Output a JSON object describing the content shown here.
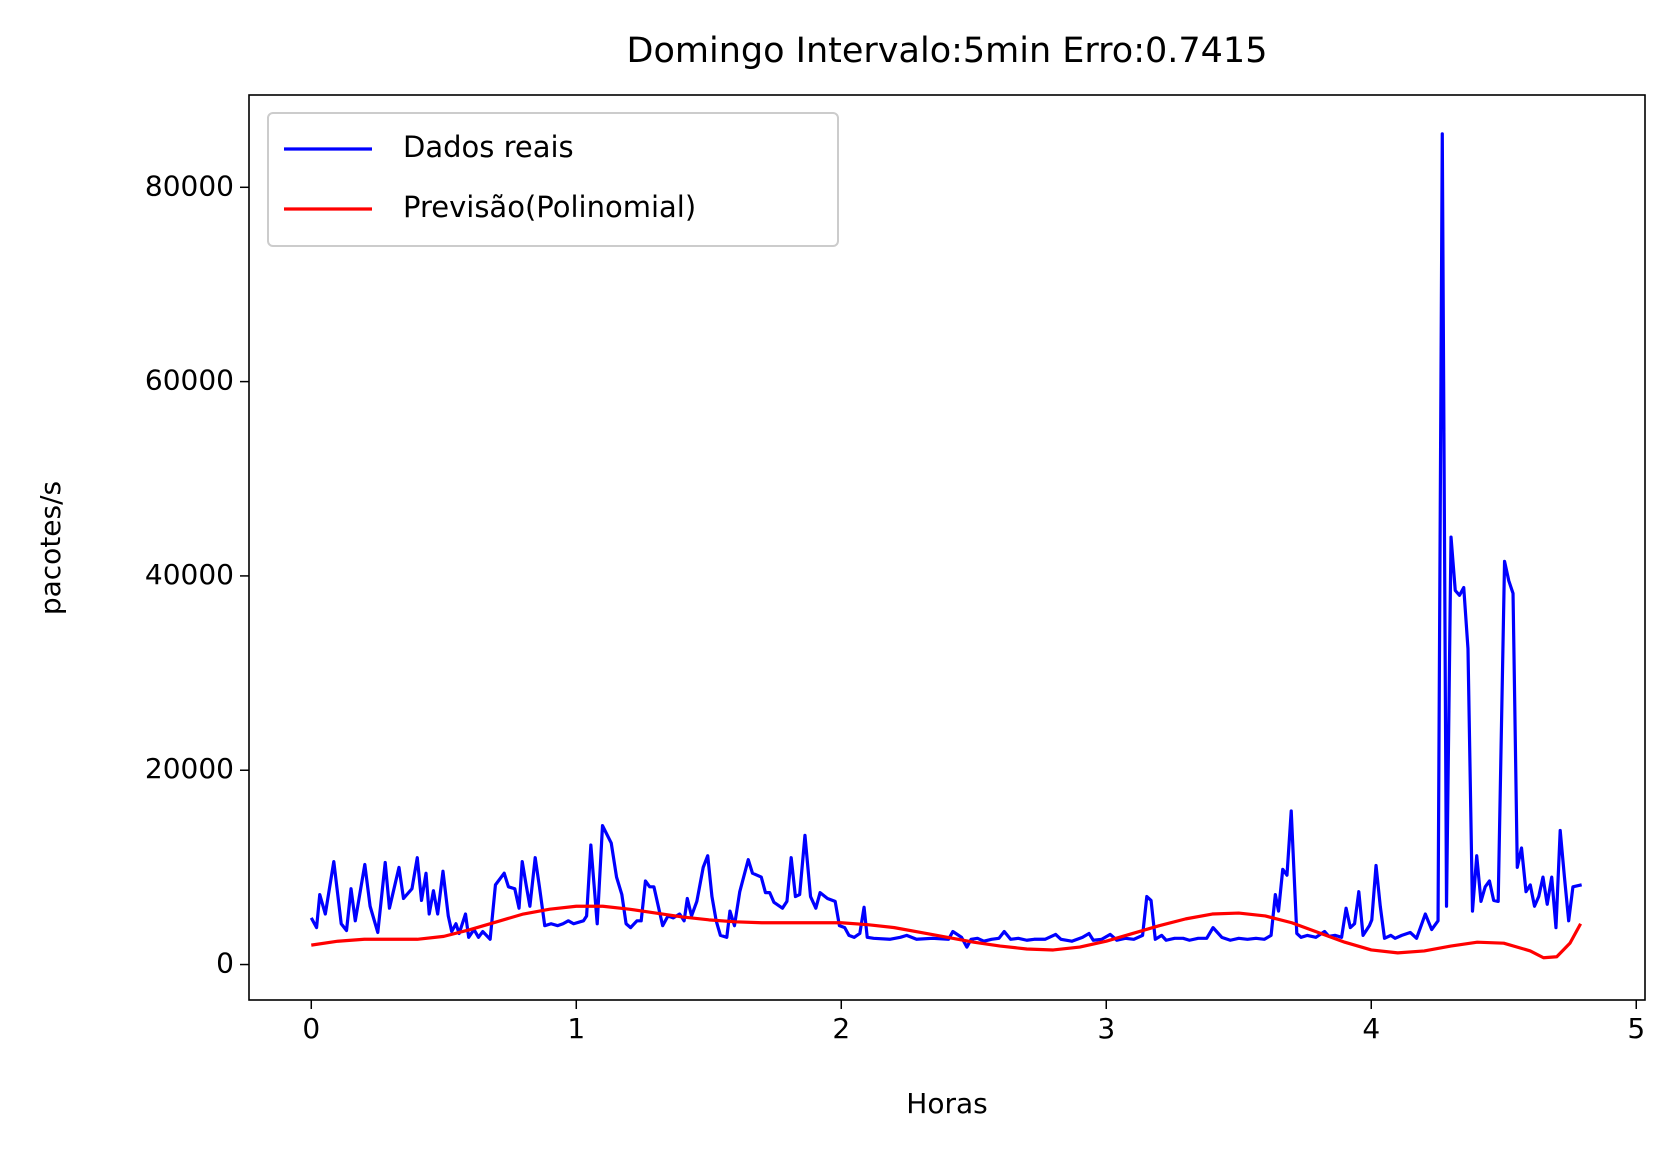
{
  "chart_data": {
    "type": "line",
    "title": "Domingo Intervalo:5min Erro:0.7415",
    "x_label": "Horas",
    "y_label": "pacotes/s",
    "xlim": [
      -0.235,
      5.033
    ],
    "ylim": [
      -3650,
      89500
    ],
    "xticks": [
      0,
      1,
      2,
      3,
      4,
      5
    ],
    "yticks": [
      0,
      20000,
      40000,
      60000,
      80000
    ],
    "legend": "upper left",
    "series": [
      {
        "name": "Dados reais",
        "color": "#0000ff",
        "x": [
          0,
          0.02,
          0.032,
          0.053,
          0.085,
          0.113,
          0.133,
          0.15,
          0.166,
          0.202,
          0.222,
          0.251,
          0.279,
          0.295,
          0.331,
          0.348,
          0.38,
          0.4,
          0.416,
          0.433,
          0.445,
          0.461,
          0.477,
          0.497,
          0.517,
          0.53,
          0.546,
          0.558,
          0.582,
          0.594,
          0.614,
          0.631,
          0.647,
          0.675,
          0.695,
          0.728,
          0.744,
          0.768,
          0.784,
          0.796,
          0.812,
          0.825,
          0.845,
          0.861,
          0.881,
          0.905,
          0.93,
          0.95,
          0.97,
          0.99,
          1.027,
          1.039,
          1.055,
          1.079,
          1.099,
          1.132,
          1.152,
          1.172,
          1.188,
          1.205,
          1.229,
          1.245,
          1.261,
          1.277,
          1.293,
          1.326,
          1.346,
          1.366,
          1.39,
          1.407,
          1.419,
          1.435,
          1.455,
          1.479,
          1.496,
          1.512,
          1.528,
          1.544,
          1.568,
          1.58,
          1.597,
          1.617,
          1.649,
          1.665,
          1.698,
          1.714,
          1.73,
          1.746,
          1.778,
          1.795,
          1.811,
          1.827,
          1.843,
          1.863,
          1.884,
          1.904,
          1.92,
          1.948,
          1.977,
          1.993,
          2.013,
          2.029,
          2.049,
          2.07,
          2.086,
          2.098,
          2.122,
          2.183,
          2.223,
          2.247,
          2.284,
          2.344,
          2.405,
          2.421,
          2.454,
          2.474,
          2.49,
          2.514,
          2.538,
          2.567,
          2.595,
          2.615,
          2.639,
          2.668,
          2.7,
          2.728,
          2.769,
          2.809,
          2.829,
          2.87,
          2.91,
          2.935,
          2.951,
          2.983,
          3.015,
          3.04,
          3.072,
          3.104,
          3.137,
          3.153,
          3.169,
          3.185,
          3.209,
          3.226,
          3.258,
          3.29,
          3.314,
          3.347,
          3.379,
          3.403,
          3.436,
          3.468,
          3.5,
          3.533,
          3.565,
          3.597,
          3.622,
          3.638,
          3.65,
          3.666,
          3.682,
          3.698,
          3.719,
          3.735,
          3.759,
          3.791,
          3.824,
          3.84,
          3.864,
          3.888,
          3.905,
          3.921,
          3.937,
          3.953,
          3.969,
          3.993,
          4.002,
          4.018,
          4.034,
          4.05,
          4.074,
          4.09,
          4.115,
          4.147,
          4.171,
          4.204,
          4.228,
          4.252,
          4.268,
          4.284,
          4.301,
          4.317,
          4.333,
          4.349,
          4.365,
          4.382,
          4.398,
          4.414,
          4.43,
          4.446,
          4.462,
          4.479,
          4.503,
          4.519,
          4.535,
          4.551,
          4.567,
          4.584,
          4.6,
          4.616,
          4.632,
          4.648,
          4.664,
          4.681,
          4.697,
          4.713,
          4.729,
          4.745,
          4.761,
          4.794
        ],
        "values": [
          4800,
          3800,
          7200,
          5200,
          10600,
          4200,
          3500,
          7800,
          4500,
          10300,
          6000,
          3300,
          10500,
          5800,
          10000,
          6800,
          7800,
          11000,
          6600,
          9400,
          5200,
          7600,
          5200,
          9600,
          5000,
          3400,
          4200,
          3200,
          5200,
          2800,
          3600,
          2800,
          3400,
          2600,
          8200,
          9400,
          8000,
          7800,
          5800,
          10600,
          8000,
          6000,
          11000,
          8000,
          4000,
          4200,
          4000,
          4200,
          4500,
          4200,
          4500,
          5000,
          12300,
          4200,
          14300,
          12500,
          9000,
          7200,
          4200,
          3800,
          4500,
          4500,
          8600,
          8000,
          8000,
          4000,
          5000,
          4800,
          5200,
          4500,
          6800,
          5000,
          6500,
          10000,
          11200,
          7000,
          4500,
          3000,
          2800,
          5500,
          4000,
          7500,
          10800,
          9400,
          9000,
          7400,
          7400,
          6400,
          5800,
          6500,
          11000,
          7000,
          7200,
          13300,
          7000,
          5800,
          7400,
          6800,
          6500,
          4000,
          3800,
          3000,
          2800,
          3200,
          5900,
          2800,
          2700,
          2600,
          2800,
          3000,
          2600,
          2700,
          2600,
          3400,
          2800,
          1800,
          2600,
          2700,
          2400,
          2600,
          2700,
          3400,
          2600,
          2700,
          2500,
          2600,
          2600,
          3100,
          2600,
          2400,
          2800,
          3200,
          2500,
          2600,
          3100,
          2500,
          2700,
          2600,
          3000,
          7000,
          6600,
          2600,
          3000,
          2500,
          2700,
          2700,
          2500,
          2700,
          2700,
          3800,
          2800,
          2500,
          2700,
          2600,
          2700,
          2600,
          3000,
          7200,
          5500,
          9800,
          9200,
          15800,
          3200,
          2800,
          3000,
          2800,
          3400,
          2900,
          3000,
          2800,
          5800,
          3800,
          4200,
          7500,
          3000,
          4000,
          4600,
          10200,
          6000,
          2700,
          3000,
          2700,
          3000,
          3300,
          2700,
          5200,
          3600,
          4500,
          85500,
          6000,
          44000,
          38500,
          38000,
          38800,
          32500,
          5500,
          11200,
          6500,
          8000,
          8600,
          6600,
          6500,
          41500,
          39500,
          38200,
          10000,
          12000,
          7500,
          8200,
          6000,
          7000,
          9000,
          6200,
          9000,
          3800,
          13800,
          9000,
          4500,
          8000,
          8200
        ]
      },
      {
        "name": "Previsão(Polinomial)",
        "color": "#ff0000",
        "x": [
          0,
          0.1,
          0.2,
          0.3,
          0.4,
          0.5,
          0.6,
          0.7,
          0.8,
          0.9,
          1.0,
          1.1,
          1.2,
          1.3,
          1.4,
          1.5,
          1.6,
          1.7,
          1.8,
          1.9,
          2.0,
          2.1,
          2.2,
          2.3,
          2.4,
          2.5,
          2.6,
          2.7,
          2.8,
          2.9,
          3.0,
          3.1,
          3.2,
          3.3,
          3.4,
          3.5,
          3.6,
          3.7,
          3.8,
          3.9,
          4.0,
          4.1,
          4.2,
          4.3,
          4.4,
          4.5,
          4.6,
          4.65,
          4.7,
          4.75,
          4.79
        ],
        "values": [
          2000,
          2400,
          2600,
          2600,
          2600,
          2900,
          3600,
          4400,
          5200,
          5700,
          6000,
          6000,
          5700,
          5300,
          4900,
          4600,
          4400,
          4300,
          4300,
          4300,
          4300,
          4100,
          3800,
          3300,
          2800,
          2300,
          1900,
          1600,
          1500,
          1800,
          2400,
          3200,
          4000,
          4700,
          5200,
          5300,
          5000,
          4300,
          3300,
          2300,
          1500,
          1200,
          1400,
          1900,
          2300,
          2200,
          1400,
          700,
          800,
          2200,
          4200
        ]
      }
    ]
  }
}
